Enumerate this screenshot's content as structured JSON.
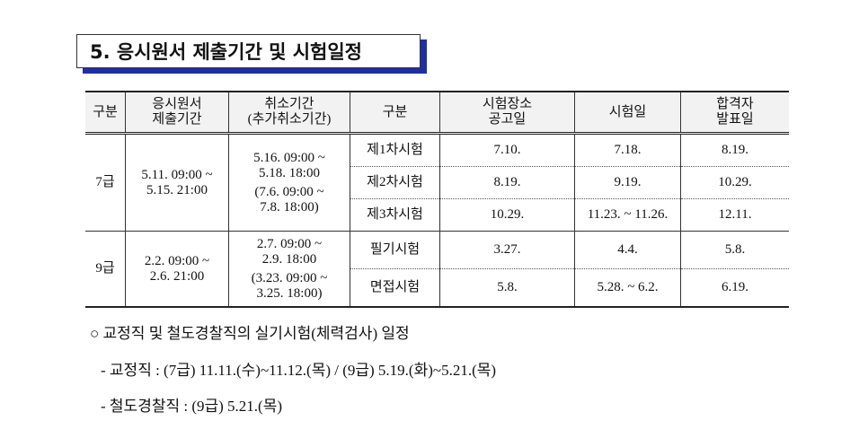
{
  "header": {
    "title": "5. 응시원서 제출기간 및 시험일정"
  },
  "table": {
    "columns": [
      "구분",
      "응시원서\n제출기간",
      "취소기간\n(추가취소기간)",
      "구분",
      "시험장소\n공고일",
      "시험일",
      "합격자\n발표일"
    ],
    "groups": [
      {
        "grade": "7급",
        "apply": "5.11. 09:00 ~\n5.15. 21:00",
        "cancel": "5.16. 09:00 ~\n5.18. 18:00",
        "extra_cancel": "(7.6. 09:00 ~\n7.8. 18:00)",
        "exams": [
          {
            "name": "제1차시험",
            "notice": "7.10.",
            "date": "7.18.",
            "result": "8.19."
          },
          {
            "name": "제2차시험",
            "notice": "8.19.",
            "date": "9.19.",
            "result": "10.29."
          },
          {
            "name": "제3차시험",
            "notice": "10.29.",
            "date": "11.23. ~ 11.26.",
            "result": "12.11."
          }
        ]
      },
      {
        "grade": "9급",
        "apply": "2.2. 09:00 ~\n2.6. 21:00",
        "cancel": "2.7. 09:00 ~\n2.9. 18:00",
        "extra_cancel": "(3.23. 09:00 ~\n3.25. 18:00)",
        "exams": [
          {
            "name": "필기시험",
            "notice": "3.27.",
            "date": "4.4.",
            "result": "5.8."
          },
          {
            "name": "면접시험",
            "notice": "5.8.",
            "date": "5.28. ~ 6.2.",
            "result": "6.19."
          }
        ]
      }
    ]
  },
  "notes": [
    "○ 교정직 및 철도경찰직의 실기시험(체력검사) 일정",
    "- 교정직 : (7급) 11.11.(수)~11.12.(목) / (9급) 5.19.(화)~5.21.(목)",
    "- 철도경찰직 : (9급) 5.21.(목)"
  ]
}
